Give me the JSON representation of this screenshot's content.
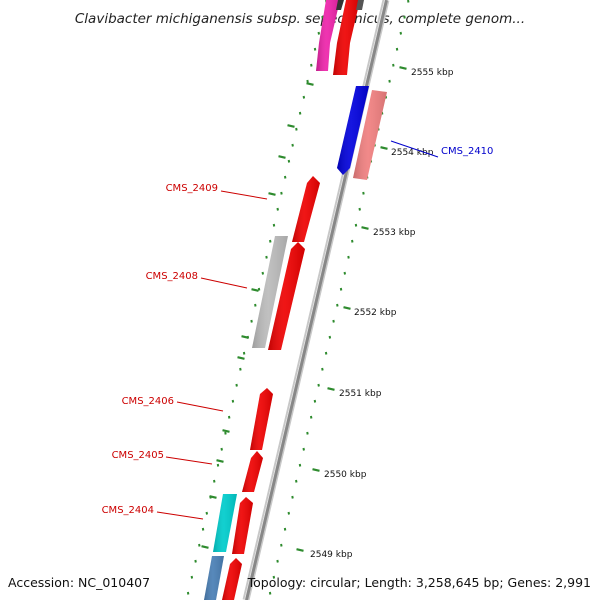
{
  "title": "Clavibacter michiganensis subsp. sepedonicus, complete genom...",
  "footer": {
    "accession": "Accession: NC_010407",
    "summary": "Topology: circular; Length: 3,258,645 bp; Genes: 2,991"
  },
  "scale_labels": [
    {
      "kbp": 2555,
      "text": "2555 kbp"
    },
    {
      "kbp": 2554,
      "text": "2554 kbp"
    },
    {
      "kbp": 2553,
      "text": "2553 kbp"
    },
    {
      "kbp": 2552,
      "text": "2552 kbp"
    },
    {
      "kbp": 2551,
      "text": "2551 kbp"
    },
    {
      "kbp": 2550,
      "text": "2550 kbp"
    },
    {
      "kbp": 2549,
      "text": "2549 kbp"
    }
  ],
  "gene_labels": [
    {
      "name": "CMS_2410",
      "color": "#0000cc"
    },
    {
      "name": "CMS_2409",
      "color": "#cc0000"
    },
    {
      "name": "CMS_2408",
      "color": "#cc0000"
    },
    {
      "name": "CMS_2406",
      "color": "#cc0000"
    },
    {
      "name": "CMS_2405",
      "color": "#cc0000"
    },
    {
      "name": "CMS_2404",
      "color": "#cc0000"
    }
  ],
  "colors": {
    "backbone": "#888888",
    "tick": "#2e8b2e",
    "cds_red": "#ee0000",
    "cds_blue": "#0000dd",
    "cds_pink": "#f08080",
    "cds_magenta": "#ee22aa",
    "cds_gray": "#bbbbbb",
    "cds_cyan": "#00cccc",
    "cds_steelblue": "#4a7fb5"
  }
}
